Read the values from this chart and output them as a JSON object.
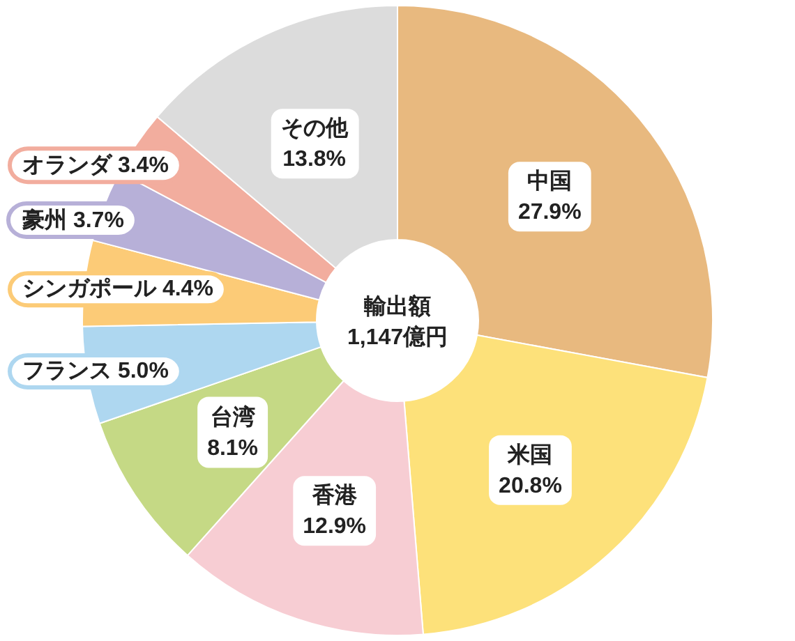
{
  "chart_data": {
    "type": "donut",
    "categories": [
      "中国",
      "米国",
      "香港",
      "台湾",
      "フランス",
      "シンガポール",
      "豪州",
      "オランダ",
      "その他"
    ],
    "values": [
      27.9,
      20.8,
      12.9,
      8.1,
      5.0,
      4.4,
      3.7,
      3.4,
      13.8
    ],
    "value_labels": [
      "27.9%",
      "20.8%",
      "12.9%",
      "8.1%",
      "5.0%",
      "4.4%",
      "3.7%",
      "3.4%",
      "13.8%"
    ],
    "colors": [
      "#e8b97f",
      "#fde17a",
      "#f7cdd3",
      "#c5d985",
      "#aed7f0",
      "#fccb77",
      "#b7b0d8",
      "#f2ad9e",
      "#dcdcdc"
    ],
    "annotations": [
      "輸出額",
      "1,147億円"
    ]
  }
}
